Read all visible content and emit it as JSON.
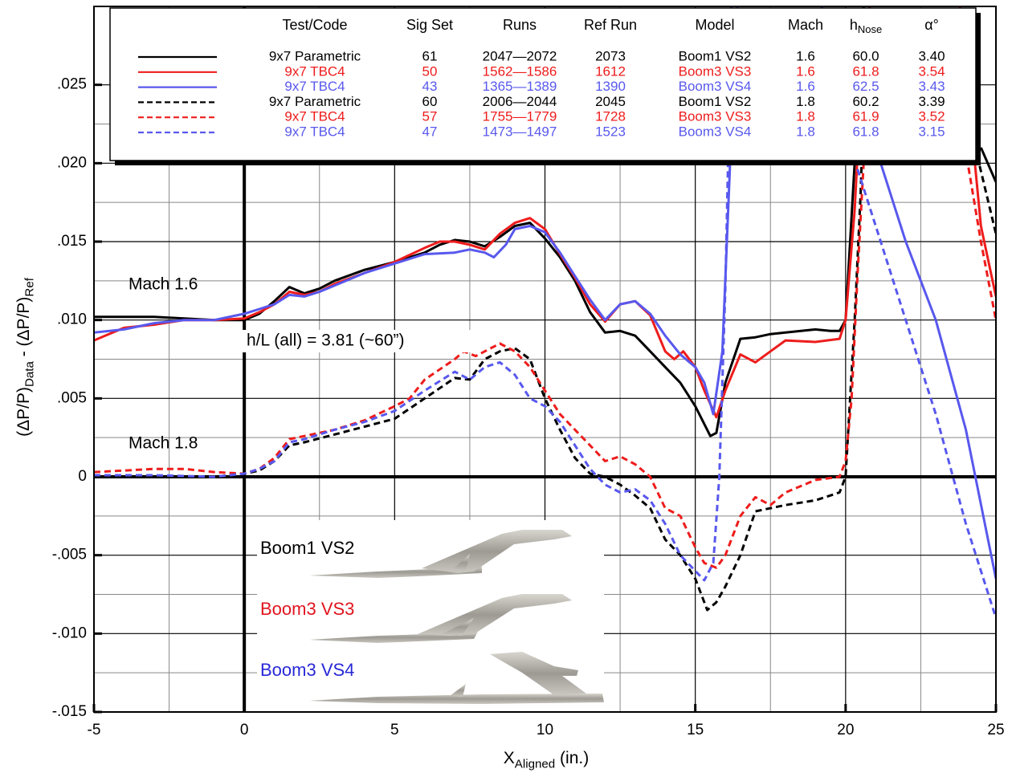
{
  "chart_data": {
    "type": "line",
    "x_label": [
      "X",
      "Aligned",
      " (in.)"
    ],
    "y_label": [
      "(ΔP/P)",
      "Data",
      " - (ΔP/P)",
      "Ref"
    ],
    "xlim": [
      -5,
      25
    ],
    "ylim": [
      -0.015,
      0.03
    ],
    "xticks": [
      -5,
      0,
      5,
      10,
      15,
      20,
      25
    ],
    "yticks": [
      {
        "value": 0.025,
        "label": ".025"
      },
      {
        "value": 0.02,
        "label": ".020"
      },
      {
        "value": 0.015,
        "label": ".015"
      },
      {
        "value": 0.01,
        "label": ".010"
      },
      {
        "value": 0.005,
        "label": ".005"
      },
      0,
      {
        "value": -0.005,
        "label": "-.005"
      },
      {
        "value": -0.01,
        "label": "-.010"
      },
      {
        "value": -0.015,
        "label": "-.015"
      }
    ],
    "xgrid_minor": [
      -2.5,
      2.5,
      7.5,
      12.5,
      17.5,
      22.5
    ],
    "ygrid_minor": [
      0.0225,
      0.0175,
      0.0125,
      0.0075,
      0.0025,
      -0.0025,
      -0.0075,
      -0.0125
    ],
    "grid": true,
    "legend_columns": [
      "Test/Code",
      "Sig Set",
      "Runs",
      "Ref Run",
      "Model",
      "Mach",
      {
        "base": "h",
        "sub": "Nose"
      },
      "α°"
    ],
    "series": [
      {
        "name": "9x7 Parametric",
        "sig_set": "61",
        "runs": "2047—2072",
        "ref_run": "2073",
        "model": "Boom1 VS2",
        "mach": "1.6",
        "h_nose": "60.0",
        "alpha": "3.40",
        "color": "#000000",
        "dashed": false,
        "x": [
          -5,
          -4,
          -3,
          -2,
          -1,
          0,
          0.5,
          1,
          1.5,
          2,
          2.5,
          3,
          4,
          5,
          6,
          6.5,
          7,
          7.5,
          8,
          8.5,
          9,
          9.5,
          10,
          10.5,
          11,
          11.5,
          12,
          12.5,
          13,
          13.5,
          14,
          14.5,
          15,
          15.5,
          15.7,
          16,
          16.5,
          17,
          17.5,
          18,
          19,
          19.5,
          19.8,
          20,
          20.3,
          20.6,
          22,
          24.5,
          25
        ],
        "values": [
          0.0102,
          0.0102,
          0.0102,
          0.0101,
          0.01,
          0.01,
          0.0104,
          0.0112,
          0.0121,
          0.0117,
          0.012,
          0.0125,
          0.0132,
          0.0137,
          0.0143,
          0.0148,
          0.0151,
          0.015,
          0.0147,
          0.0153,
          0.016,
          0.0162,
          0.0152,
          0.014,
          0.0125,
          0.0105,
          0.0092,
          0.0093,
          0.009,
          0.008,
          0.007,
          0.006,
          0.0045,
          0.0026,
          0.0028,
          0.006,
          0.0088,
          0.0089,
          0.0091,
          0.0092,
          0.0094,
          0.0093,
          0.0093,
          0.01,
          0.02,
          0.03,
          null,
          0.021,
          0.0188
        ]
      },
      {
        "name": "9x7 TBC4",
        "sig_set": "50",
        "runs": "1562—1586",
        "ref_run": "1612",
        "model": "Boom3 VS3",
        "mach": "1.6",
        "h_nose": "61.8",
        "alpha": "3.54",
        "color": "#ee1c1c",
        "dashed": false,
        "x": [
          -5,
          -4,
          -3,
          -2,
          -1,
          0,
          0.5,
          1,
          1.5,
          2,
          2.5,
          3,
          4,
          5,
          6,
          6.5,
          7,
          7.5,
          8,
          8.5,
          9,
          9.5,
          10,
          10.5,
          11,
          11.5,
          12,
          12.5,
          13,
          13.5,
          14,
          14.3,
          14.6,
          15,
          15.3,
          15.7,
          16,
          16.5,
          17,
          17.5,
          18,
          19,
          19.8,
          20,
          20.3,
          20.6,
          22,
          23.8,
          24.5,
          25
        ],
        "values": [
          0.0087,
          0.0095,
          0.0097,
          0.01,
          0.01,
          0.0101,
          0.0105,
          0.011,
          0.0118,
          0.0116,
          0.0118,
          0.0123,
          0.013,
          0.0137,
          0.0146,
          0.015,
          0.015,
          0.0148,
          0.0145,
          0.0155,
          0.0162,
          0.0165,
          0.0158,
          0.0142,
          0.0127,
          0.011,
          0.0099,
          0.011,
          0.0112,
          0.0103,
          0.008,
          0.0075,
          0.008,
          0.007,
          0.0055,
          0.0038,
          0.0055,
          0.0078,
          0.0073,
          0.008,
          0.0087,
          0.0086,
          0.0088,
          0.01,
          0.017,
          0.028,
          null,
          0.03,
          0.016,
          0.0115
        ]
      },
      {
        "name": "9x7 TBC4",
        "sig_set": "43",
        "runs": "1365—1389",
        "ref_run": "1390",
        "model": "Boom3 VS4",
        "mach": "1.6",
        "h_nose": "62.5",
        "alpha": "3.43",
        "color": "#5858ee",
        "dashed": false,
        "x": [
          -5,
          -4,
          -3,
          -2,
          -1,
          0,
          0.5,
          1,
          1.5,
          2,
          2.5,
          3,
          4,
          5,
          6,
          7,
          7.5,
          8,
          8.3,
          8.7,
          9,
          9.5,
          10,
          10.5,
          11,
          11.5,
          12,
          12.5,
          13,
          13.5,
          14,
          14.5,
          15,
          15.3,
          15.6,
          15.9,
          16.2,
          16.4,
          18,
          20.8,
          21,
          22,
          23,
          24,
          25
        ],
        "values": [
          0.0092,
          0.0094,
          0.0098,
          0.01,
          0.01,
          0.0104,
          0.0107,
          0.011,
          0.0116,
          0.0115,
          0.0118,
          0.0122,
          0.013,
          0.0136,
          0.0142,
          0.0143,
          0.0145,
          0.0143,
          0.014,
          0.0148,
          0.0158,
          0.016,
          0.0156,
          0.0143,
          0.0128,
          0.0113,
          0.01,
          0.011,
          0.0112,
          0.0104,
          0.009,
          0.0078,
          0.007,
          0.006,
          0.004,
          0.008,
          0.022,
          0.03,
          null,
          0.03,
          0.021,
          0.015,
          0.01,
          0.003,
          -0.0065
        ]
      },
      {
        "name": "9x7 Parametric",
        "sig_set": "60",
        "runs": "2006—2044",
        "ref_run": "2045",
        "model": "Boom1 VS2",
        "mach": "1.8",
        "h_nose": "60.2",
        "alpha": "3.39",
        "color": "#000000",
        "dashed": true,
        "x": [
          -5,
          -3,
          -1,
          0,
          0.5,
          1,
          1.5,
          2,
          3,
          4,
          5,
          6,
          7,
          7.5,
          8,
          8.5,
          9,
          9.5,
          10,
          10.5,
          11,
          11.5,
          12,
          12.5,
          13,
          13.5,
          14,
          14.5,
          15,
          15.4,
          15.7,
          16,
          16.5,
          17,
          17.5,
          18,
          19,
          19.8,
          20,
          20.3,
          20.5,
          20.7,
          22,
          23.8,
          24.5,
          25
        ],
        "values": [
          0,
          0,
          0,
          0.0002,
          0.0004,
          0.001,
          0.002,
          0.0022,
          0.0027,
          0.0032,
          0.0037,
          0.005,
          0.0063,
          0.0062,
          0.0075,
          0.008,
          0.0082,
          0.0075,
          0.005,
          0.003,
          0.0012,
          0.0002,
          0,
          -0.0005,
          -0.0012,
          -0.002,
          -0.004,
          -0.005,
          -0.0065,
          -0.0085,
          -0.008,
          -0.007,
          -0.005,
          -0.0022,
          -0.002,
          -0.0018,
          -0.0015,
          -0.001,
          0,
          0.01,
          0.018,
          0.03,
          null,
          0.025,
          0.0195,
          0.0155
        ]
      },
      {
        "name": "9x7 TBC4",
        "sig_set": "57",
        "runs": "1755—1779",
        "ref_run": "1728",
        "model": "Boom3 VS3",
        "mach": "1.8",
        "h_nose": "61.9",
        "alpha": "3.52",
        "color": "#ee1c1c",
        "dashed": true,
        "x": [
          -5,
          -4,
          -3,
          -2,
          -1,
          0,
          0.5,
          1,
          1.5,
          2,
          3,
          4,
          5,
          5.5,
          6,
          7,
          7.3,
          7.7,
          8,
          8.5,
          9,
          9.5,
          10,
          10.5,
          11,
          11.5,
          12,
          12.5,
          13,
          13.5,
          14,
          14.5,
          15,
          15.3,
          15.7,
          16,
          16.5,
          17,
          17.5,
          18,
          19,
          19.8,
          20,
          20.2,
          20.4,
          20.6,
          20.8,
          22,
          23.8,
          24.5,
          25
        ],
        "values": [
          0.0003,
          0.0004,
          0.0005,
          0.0005,
          0.0003,
          0.0002,
          0.0005,
          0.0012,
          0.0024,
          0.0026,
          0.003,
          0.0036,
          0.0045,
          0.005,
          0.0062,
          0.0075,
          0.008,
          0.0077,
          0.008,
          0.0085,
          0.008,
          0.007,
          0.0055,
          0.004,
          0.003,
          0.002,
          0.001,
          0.0013,
          0.0008,
          0,
          -0.002,
          -0.0025,
          -0.0045,
          -0.0055,
          -0.0058,
          -0.005,
          -0.0025,
          -0.0013,
          -0.0018,
          -0.001,
          -0.0002,
          0,
          0.001,
          0.005,
          0.013,
          0.02,
          0.03,
          null,
          0.023,
          0.015,
          0.01
        ]
      },
      {
        "name": "9x7 TBC4",
        "sig_set": "47",
        "runs": "1473—1497",
        "ref_run": "1523",
        "model": "Boom3 VS4",
        "mach": "1.8",
        "h_nose": "61.8",
        "alpha": "3.15",
        "color": "#5858ee",
        "dashed": true,
        "x": [
          -5,
          -3,
          -1,
          0,
          0.5,
          1,
          1.5,
          2,
          3,
          4,
          5,
          6,
          7,
          7.5,
          8,
          8.5,
          9,
          9.5,
          10,
          10.5,
          11,
          11.5,
          12,
          12.5,
          13,
          13.5,
          14,
          14.5,
          15,
          15.3,
          15.6,
          15.8,
          16,
          16.2,
          18,
          19.2,
          20,
          21,
          22,
          23,
          24,
          25
        ],
        "values": [
          0.0001,
          0.0001,
          0,
          0.0002,
          0.0005,
          0.001,
          0.0022,
          0.0024,
          0.003,
          0.0035,
          0.0042,
          0.0055,
          0.0067,
          0.0062,
          0.007,
          0.0073,
          0.0065,
          0.005,
          0.0045,
          0.0035,
          0.002,
          0.0005,
          -0.0005,
          -0.001,
          -0.0008,
          -0.0015,
          -0.003,
          -0.005,
          -0.006,
          -0.0066,
          -0.0055,
          0,
          0.012,
          0.03,
          null,
          0.03,
          0.022,
          0.016,
          0.01,
          0.004,
          -0.003,
          -0.009
        ]
      }
    ],
    "annotations": [
      "Mach 1.6",
      "Mach 1.8",
      "h/L (all) = 3.81 (~60”)"
    ],
    "inset_labels": [
      {
        "text": "Boom1 VS2",
        "color": "#000000"
      },
      {
        "text": "Boom3 VS3",
        "color": "#e0141e"
      },
      {
        "text": "Boom3 VS4",
        "color": "#2828d8"
      }
    ]
  }
}
